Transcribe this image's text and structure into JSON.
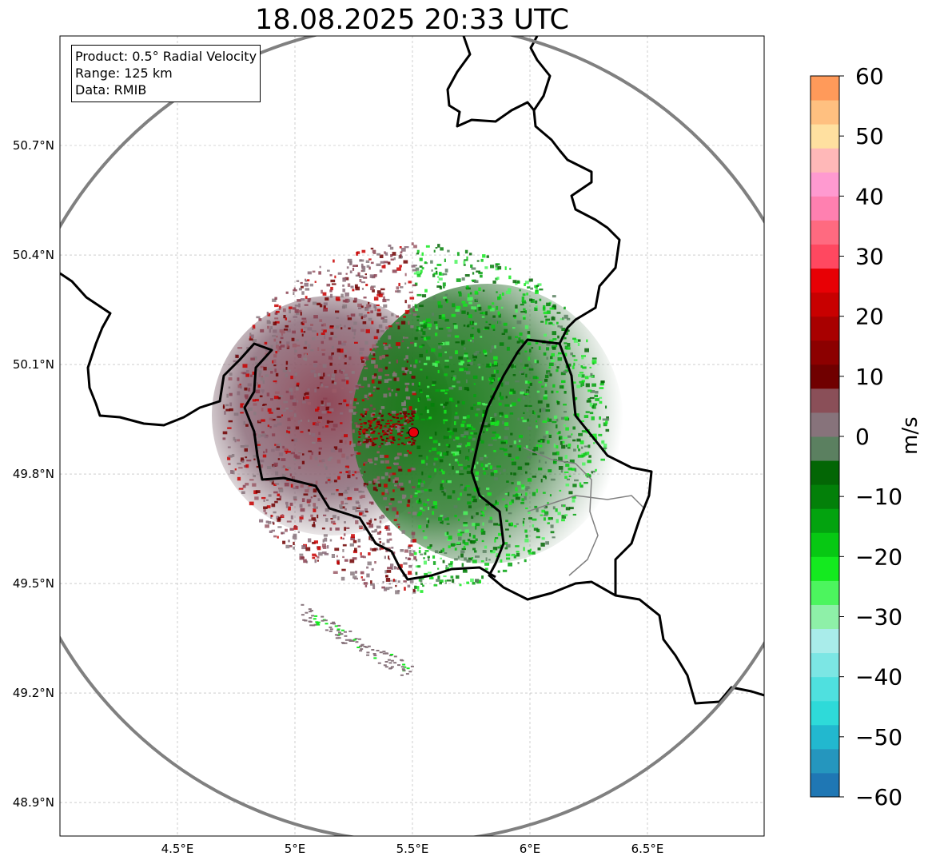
{
  "title": "18.08.2025 20:33 UTC",
  "info": {
    "product": "Product: 0.5° Radial Velocity",
    "range": "Range: 125 km",
    "source": "Data: RMIB"
  },
  "map": {
    "lon_range": [
      4.0,
      7.0
    ],
    "lat_range": [
      48.8,
      51.0
    ],
    "radar_site": {
      "lon": 5.505,
      "lat": 49.914,
      "color": "#e8000b"
    },
    "range_ring_color": "#808080",
    "x_ticks": [
      "4.5°E",
      "5°E",
      "5.5°E",
      "6°E",
      "6.5°E"
    ],
    "y_ticks": [
      "50.7°N",
      "50.4°N",
      "50.1°N",
      "49.8°N",
      "49.5°N",
      "49.2°N",
      "48.9°N"
    ],
    "gridlines": true
  },
  "colorbar": {
    "label": "m/s",
    "range": [
      -60,
      60
    ],
    "tick_labels": [
      "60",
      "50",
      "40",
      "30",
      "20",
      "10",
      "0",
      "−10",
      "−20",
      "−30",
      "−40",
      "−50",
      "−60"
    ],
    "colors": [
      {
        "from": -60,
        "to": -56,
        "color": "#1f77b4"
      },
      {
        "from": -56,
        "to": -52,
        "color": "#2596be"
      },
      {
        "from": -52,
        "to": -48,
        "color": "#22b8cf"
      },
      {
        "from": -48,
        "to": -44,
        "color": "#2edad9"
      },
      {
        "from": -44,
        "to": -40,
        "color": "#4fe0df"
      },
      {
        "from": -40,
        "to": -36,
        "color": "#7ce6e4"
      },
      {
        "from": -36,
        "to": -32,
        "color": "#a9ecea"
      },
      {
        "from": -32,
        "to": -28,
        "color": "#8ef0a8"
      },
      {
        "from": -28,
        "to": -24,
        "color": "#4cf55e"
      },
      {
        "from": -24,
        "to": -20,
        "color": "#14ea1f"
      },
      {
        "from": -20,
        "to": -16,
        "color": "#07c813"
      },
      {
        "from": -16,
        "to": -12,
        "color": "#03a30f"
      },
      {
        "from": -12,
        "to": -8,
        "color": "#038009"
      },
      {
        "from": -8,
        "to": -4,
        "color": "#036605"
      },
      {
        "from": -4,
        "to": 0,
        "color": "#5b8060"
      },
      {
        "from": 0,
        "to": 4,
        "color": "#87737b"
      },
      {
        "from": 4,
        "to": 8,
        "color": "#8a4f58"
      },
      {
        "from": 8,
        "to": 12,
        "color": "#700000"
      },
      {
        "from": 12,
        "to": 16,
        "color": "#8c0000"
      },
      {
        "from": 16,
        "to": 20,
        "color": "#a80000"
      },
      {
        "from": 20,
        "to": 24,
        "color": "#c80000"
      },
      {
        "from": 24,
        "to": 28,
        "color": "#e80005"
      },
      {
        "from": 28,
        "to": 32,
        "color": "#ff4860"
      },
      {
        "from": 32,
        "to": 36,
        "color": "#ff6a80"
      },
      {
        "from": 36,
        "to": 40,
        "color": "#ff80b0"
      },
      {
        "from": 40,
        "to": 44,
        "color": "#ff9ad0"
      },
      {
        "from": 44,
        "to": 48,
        "color": "#ffb8b8"
      },
      {
        "from": 48,
        "to": 52,
        "color": "#ffe0a0"
      },
      {
        "from": 52,
        "to": 56,
        "color": "#ffc080"
      },
      {
        "from": 56,
        "to": 60,
        "color": "#ff9a5a"
      }
    ]
  }
}
